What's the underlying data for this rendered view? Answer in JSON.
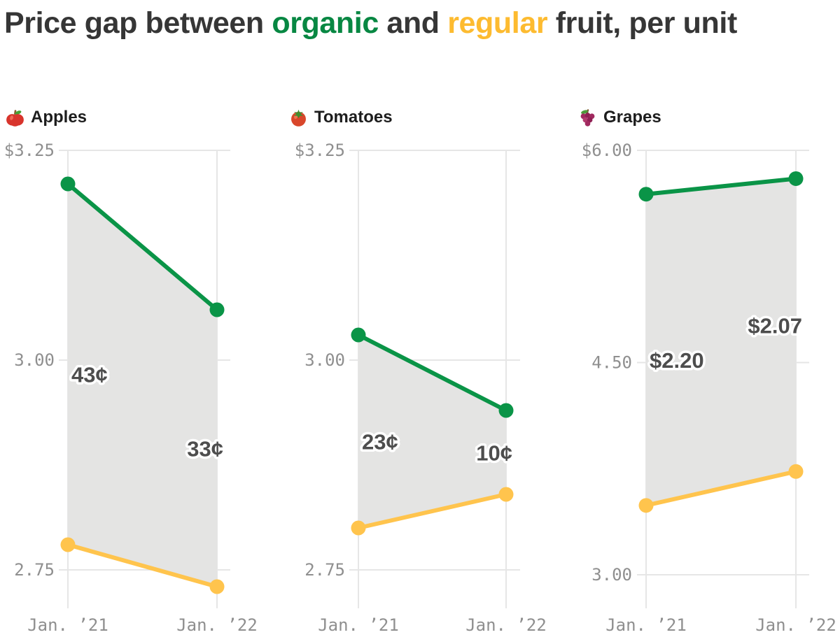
{
  "title": {
    "prefix": "Price gap between ",
    "organic_word": "organic",
    "and_word": " and ",
    "regular_word": "regular",
    "suffix": " fruit, per unit"
  },
  "colors": {
    "organic_line": "#0a9447",
    "regular_line": "#ffc44d",
    "title_organic": "#078742",
    "title_regular": "#fdbb30",
    "band": "#e4e4e3",
    "grid": "#e6e6e6",
    "axis_text": "#8f8f8f",
    "gap_label_text": "#4d4d4d",
    "heading_text": "#363636",
    "panel_title_text": "#1d1d1d"
  },
  "x_labels": [
    "Jan. ’21",
    "Jan. ’22"
  ],
  "chart_data": [
    {
      "type": "line",
      "title": "Apples",
      "icon": "apple-icon",
      "x": [
        "Jan. ’21",
        "Jan. ’22"
      ],
      "series": [
        {
          "name": "organic",
          "values": [
            3.21,
            3.06
          ]
        },
        {
          "name": "regular",
          "values": [
            2.78,
            2.73
          ]
        }
      ],
      "gap_labels": [
        "43¢",
        "33¢"
      ],
      "y_ticks": [
        {
          "label": "$3.25",
          "value": 3.25
        },
        {
          "label": "3.00",
          "value": 3.0
        },
        {
          "label": "2.75",
          "value": 2.75
        }
      ],
      "ylim": [
        2.7,
        3.25
      ],
      "grid": true,
      "legend": "none"
    },
    {
      "type": "line",
      "title": "Tomatoes",
      "icon": "tomato-icon",
      "x": [
        "Jan. ’21",
        "Jan. ’22"
      ],
      "series": [
        {
          "name": "organic",
          "values": [
            3.03,
            2.94
          ]
        },
        {
          "name": "regular",
          "values": [
            2.8,
            2.84
          ]
        }
      ],
      "gap_labels": [
        "23¢",
        "10¢"
      ],
      "y_ticks": [
        {
          "label": "$3.25",
          "value": 3.25
        },
        {
          "label": "3.00",
          "value": 3.0
        },
        {
          "label": "2.75",
          "value": 2.75
        }
      ],
      "ylim": [
        2.7,
        3.25
      ],
      "grid": true,
      "legend": "none"
    },
    {
      "type": "line",
      "title": "Grapes",
      "icon": "grapes-icon",
      "x": [
        "Jan. ’21",
        "Jan. ’22"
      ],
      "series": [
        {
          "name": "organic",
          "values": [
            5.69,
            5.8
          ]
        },
        {
          "name": "regular",
          "values": [
            3.49,
            3.73
          ]
        }
      ],
      "gap_labels": [
        "$2.20",
        "$2.07"
      ],
      "y_ticks": [
        {
          "label": "$6.00",
          "value": 6.0
        },
        {
          "label": "4.50",
          "value": 4.5
        },
        {
          "label": "3.00",
          "value": 3.0
        }
      ],
      "ylim": [
        2.75,
        6.0
      ],
      "grid": true,
      "legend": "none"
    }
  ]
}
